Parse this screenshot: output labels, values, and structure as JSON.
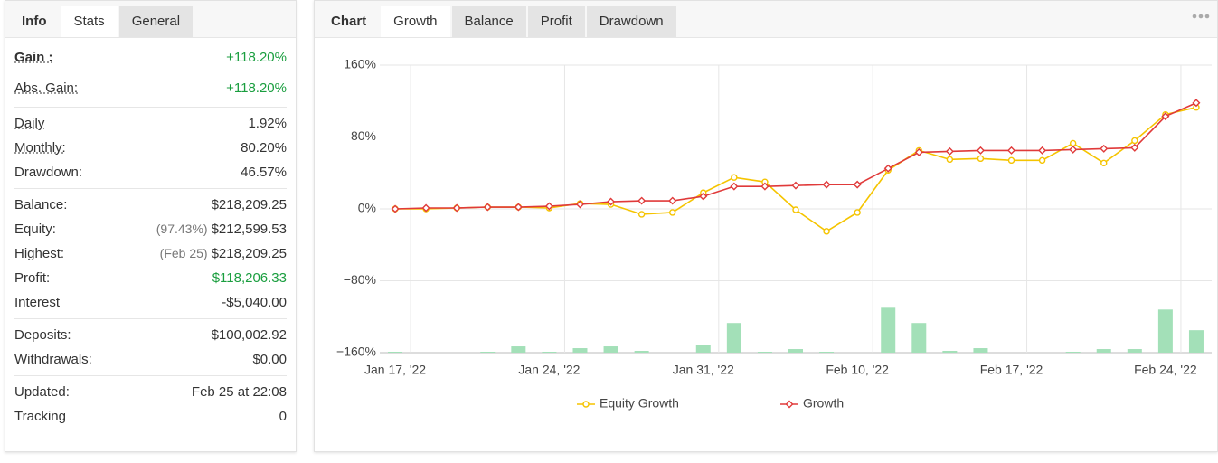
{
  "left_tabs": [
    "Info",
    "Stats",
    "General"
  ],
  "stats": [
    [
      {
        "label": "Gain :",
        "value": "+118.20%",
        "color": "#1a9e3f"
      },
      {
        "label": "Abs. Gain:",
        "value": "+118.20%",
        "color": "#1a9e3f"
      }
    ],
    [
      {
        "label": "Daily",
        "value": "1.92%"
      },
      {
        "label": "Monthly:",
        "value": "80.20%"
      },
      {
        "label": "Drawdown:",
        "value": "46.57%"
      }
    ],
    [
      {
        "label": "Balance:",
        "value": "$218,209.25"
      },
      {
        "label": "Equity:",
        "note": "(97.43%)",
        "value": "$212,599.53"
      },
      {
        "label": "Highest:",
        "note": "(Feb 25)",
        "value": "$218,209.25"
      },
      {
        "label": "Profit:",
        "value": "$118,206.33",
        "color": "#1a9e3f"
      },
      {
        "label": "Interest",
        "value": "-$5,040.00"
      }
    ],
    [
      {
        "label": "Deposits:",
        "value": "$100,002.92"
      },
      {
        "label": "Withdrawals:",
        "value": "$0.00"
      }
    ],
    [
      {
        "label": "Updated:",
        "value": "Feb 25 at 22:08"
      },
      {
        "label": "Tracking",
        "value": "0"
      }
    ]
  ],
  "chart_tabs": [
    "Chart",
    "Growth",
    "Balance",
    "Profit",
    "Drawdown"
  ],
  "chart_data": {
    "type": "line",
    "categories": [
      "Jan 17, '22",
      null,
      null,
      null,
      null,
      "Jan 24, '22",
      null,
      null,
      null,
      null,
      "Jan 31, '22",
      null,
      null,
      null,
      null,
      "Feb 10, '22",
      null,
      null,
      null,
      null,
      "Feb 17, '22",
      null,
      null,
      null,
      null,
      "Feb 24, '22",
      null
    ],
    "series": [
      {
        "name": "Equity Growth",
        "color": "#f5c400",
        "marker": "circle",
        "values": [
          0,
          0,
          1,
          2,
          2,
          1,
          6,
          5,
          -6,
          -4,
          18,
          35,
          30,
          -1,
          -25,
          -4,
          43,
          65,
          55,
          56,
          54,
          54,
          73,
          51,
          76,
          105,
          113
        ]
      },
      {
        "name": "Growth",
        "color": "#e03a3a",
        "marker": "diamond",
        "values": [
          0,
          1,
          1,
          2,
          2,
          3,
          5,
          8,
          9,
          9,
          14,
          25,
          25,
          26,
          27,
          27,
          45,
          63,
          64,
          65,
          65,
          65,
          66,
          67,
          68,
          103,
          118
        ]
      },
      {
        "color": "#a3e0b8",
        "type": "bar",
        "axis": "y2",
        "values": [
          1,
          0,
          0,
          1,
          7,
          1,
          5,
          7,
          2,
          0,
          9,
          33,
          1,
          4,
          1,
          0,
          50,
          33,
          2,
          5,
          0,
          0,
          1,
          4,
          4,
          48,
          25
        ]
      }
    ],
    "ylim": [
      -160,
      160
    ],
    "yticks": [
      {
        "value": 160,
        "label": "160%"
      },
      {
        "value": 80,
        "label": "80%"
      },
      {
        "value": 0,
        "label": "0%"
      },
      {
        "value": -80,
        "label": "−80%"
      },
      {
        "value": -160,
        "label": "−160%"
      }
    ],
    "y2lim": [
      0,
      320
    ],
    "grid": true,
    "legend": "bottom"
  }
}
